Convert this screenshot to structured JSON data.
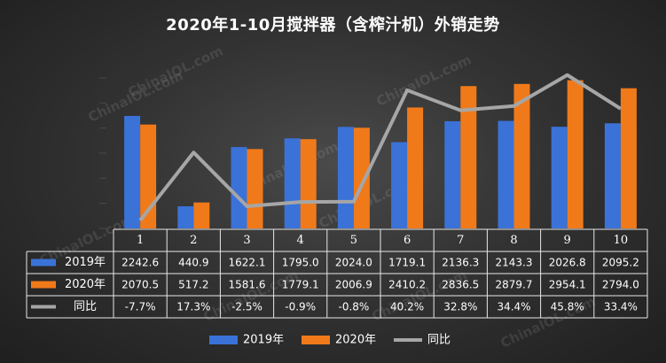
{
  "watermark": "ChinaIOL.com",
  "chart_data": {
    "type": "bar",
    "title": "2020年1-10月搅拌器（含榨汁机）外销走势",
    "categories": [
      "1",
      "2",
      "3",
      "4",
      "5",
      "6",
      "7",
      "8",
      "9",
      "10"
    ],
    "series": [
      {
        "name": "2019年",
        "type": "bar",
        "color": "#3a72d8",
        "values": [
          2242.6,
          440.9,
          1622.1,
          1795.0,
          2024.0,
          1719.1,
          2136.3,
          2143.3,
          2026.8,
          2095.2
        ],
        "labels": [
          "2242.6",
          "440.9",
          "1622.1",
          "1795.0",
          "2024.0",
          "1719.1",
          "2136.3",
          "2143.3",
          "2026.8",
          "2095.2"
        ]
      },
      {
        "name": "2020年",
        "type": "bar",
        "color": "#f07a1a",
        "values": [
          2070.5,
          517.2,
          1581.6,
          1779.1,
          2006.9,
          2410.2,
          2836.5,
          2879.7,
          2954.1,
          2794.0
        ],
        "labels": [
          "2070.5",
          "517.2",
          "1581.6",
          "1779.1",
          "2006.9",
          "2410.2",
          "2836.5",
          "2879.7",
          "2954.1",
          "2794.0"
        ]
      },
      {
        "name": "同比",
        "type": "line",
        "color": "#a6a6a6",
        "values": [
          -7.7,
          17.3,
          -2.5,
          -0.9,
          -0.8,
          40.2,
          32.8,
          34.4,
          45.8,
          33.4
        ],
        "labels": [
          "-7.7%",
          "17.3%",
          "-2.5%",
          "-0.9%",
          "-0.8%",
          "40.2%",
          "32.8%",
          "34.4%",
          "45.8%",
          "33.4%"
        ]
      }
    ],
    "legend": {
      "position": "bottom"
    },
    "grid": false
  }
}
